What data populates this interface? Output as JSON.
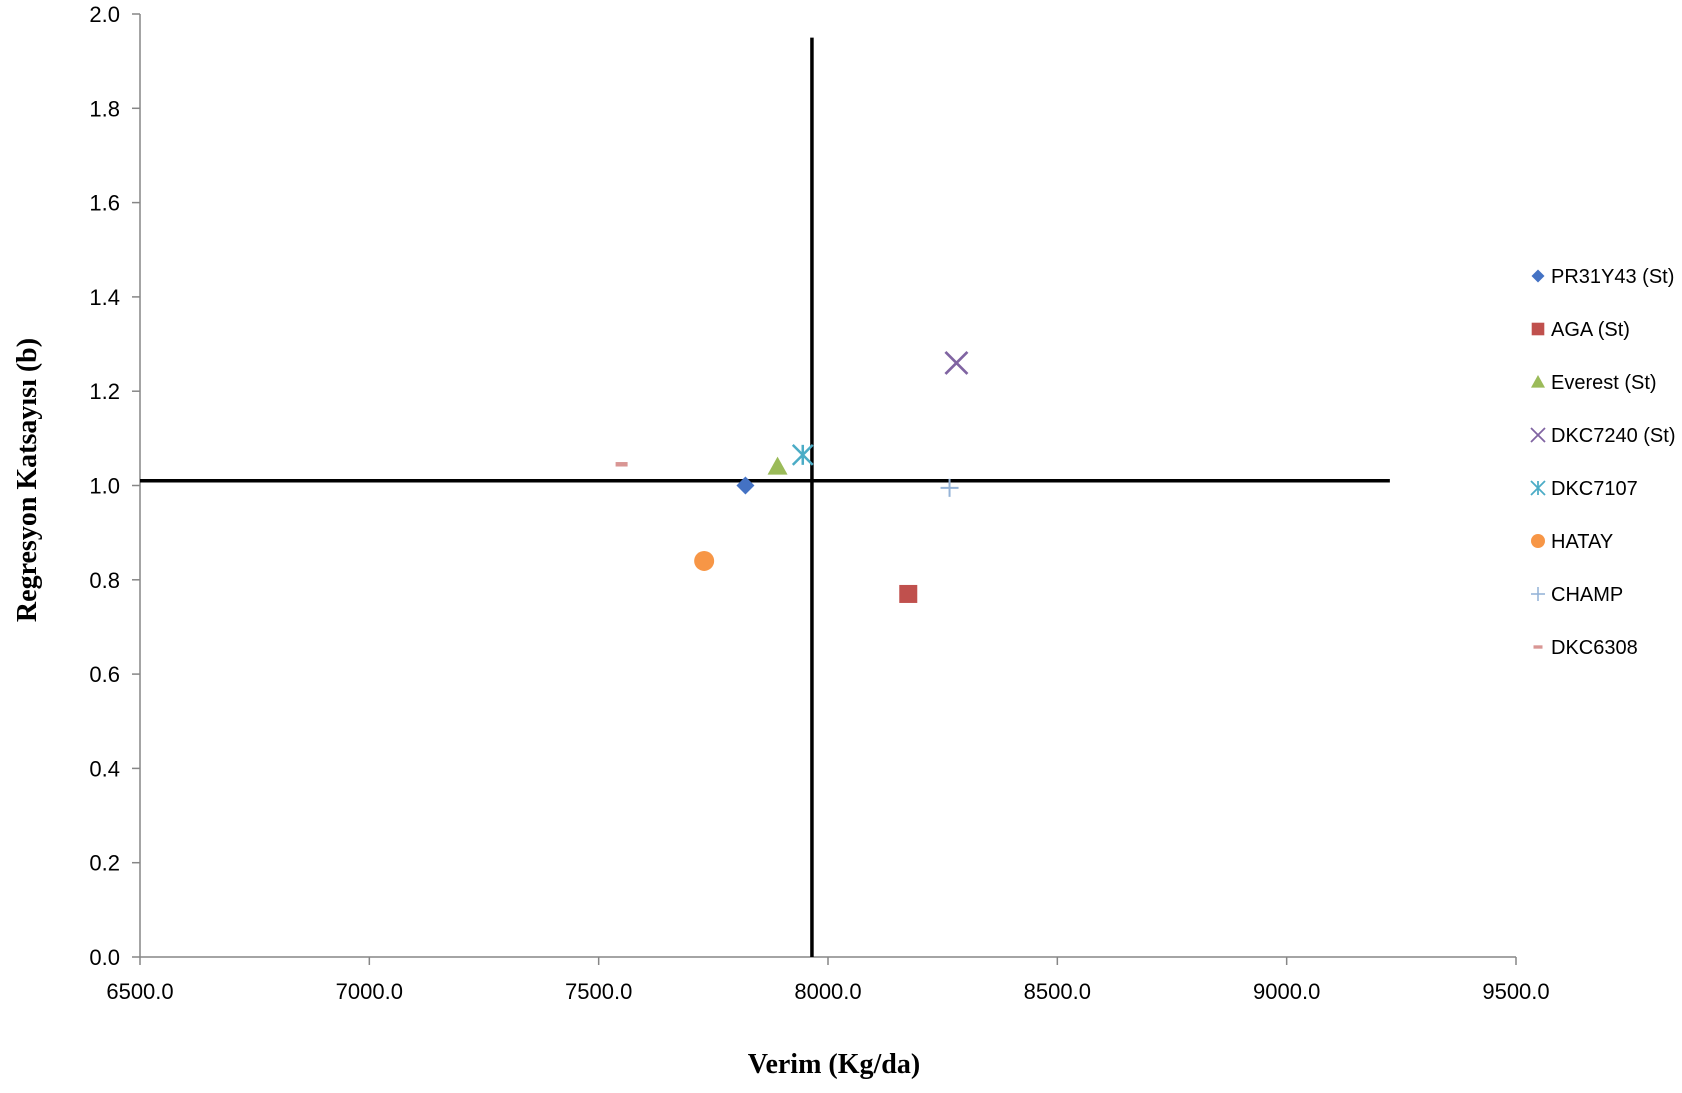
{
  "chart_data": {
    "type": "scatter",
    "title": "",
    "xlabel": "Verim (Kg/da)",
    "ylabel": "Regresyon Katsayısı (b)",
    "xlim": [
      6500,
      9500
    ],
    "ylim": [
      0,
      2
    ],
    "x_ticks": [
      "6500.0",
      "7000.0",
      "7500.0",
      "8000.0",
      "8500.0",
      "9000.0",
      "9500.0"
    ],
    "y_ticks": [
      "0.0",
      "0.2",
      "0.4",
      "0.6",
      "0.8",
      "1.0",
      "1.2",
      "1.4",
      "1.6",
      "1.8",
      "2.0"
    ],
    "grid": false,
    "legend_position": "right",
    "reference_lines": [
      {
        "orientation": "vertical",
        "x": 7965,
        "y_range": [
          0,
          1.95
        ],
        "color": "#000000"
      },
      {
        "orientation": "horizontal",
        "y": 1.01,
        "x_range": [
          6500,
          9225
        ],
        "color": "#000000"
      }
    ],
    "series": [
      {
        "name": "PR31Y43 (St)",
        "marker": "diamond",
        "color": "#4472C4",
        "x": [
          7820
        ],
        "y": [
          1.0
        ]
      },
      {
        "name": "AGA (St)",
        "marker": "square",
        "color": "#C0504D",
        "x": [
          8175
        ],
        "y": [
          0.77
        ]
      },
      {
        "name": "Everest (St)",
        "marker": "triangle",
        "color": "#9BBB59",
        "x": [
          7890
        ],
        "y": [
          1.04
        ]
      },
      {
        "name": "DKC7240 (St)",
        "marker": "x",
        "color": "#8064A2",
        "x": [
          8280
        ],
        "y": [
          1.26
        ]
      },
      {
        "name": "DKC7107",
        "marker": "star",
        "color": "#4BACC6",
        "x": [
          7945
        ],
        "y": [
          1.065
        ]
      },
      {
        "name": "HATAY",
        "marker": "circle",
        "color": "#F79646",
        "x": [
          7730
        ],
        "y": [
          0.84
        ]
      },
      {
        "name": "CHAMP",
        "marker": "plus",
        "color": "#95B3D7",
        "x": [
          8265
        ],
        "y": [
          0.995
        ]
      },
      {
        "name": "DKC6308",
        "marker": "dash",
        "color": "#D99694",
        "x": [
          7550
        ],
        "y": [
          1.045
        ]
      }
    ]
  }
}
